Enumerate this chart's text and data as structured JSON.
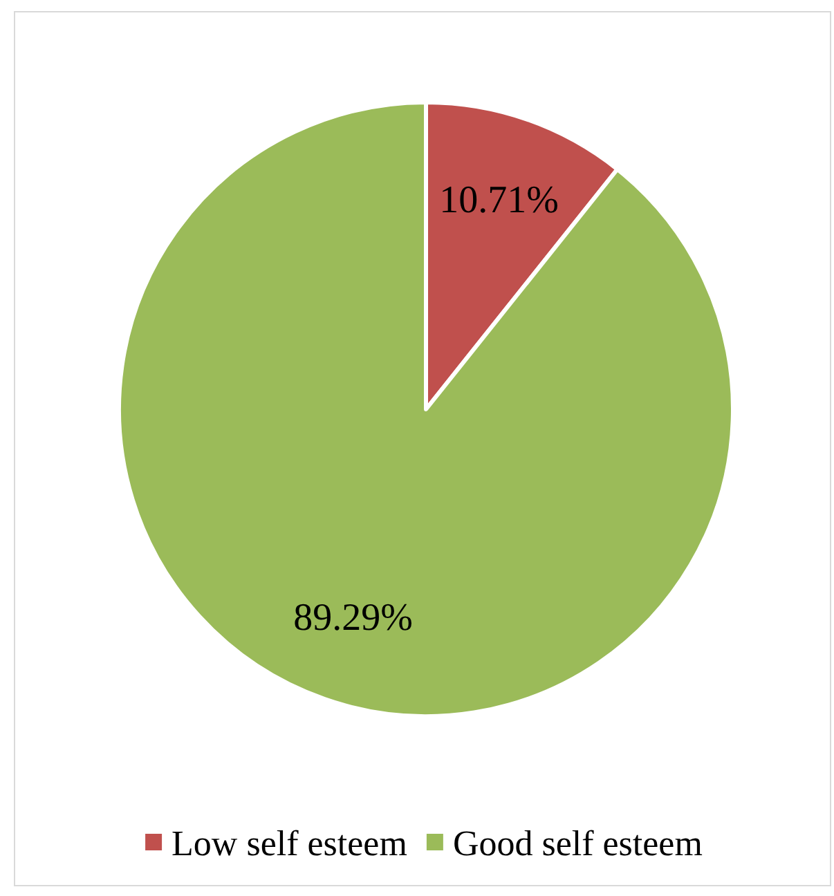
{
  "chart_data": {
    "type": "pie",
    "categories": [
      "Low self esteem",
      "Good self esteem"
    ],
    "values": [
      10.71,
      89.29
    ],
    "colors": [
      "#c0504d",
      "#9bbb59"
    ],
    "value_labels": [
      "10.71%",
      "89.29%"
    ],
    "legend": "bottom"
  }
}
